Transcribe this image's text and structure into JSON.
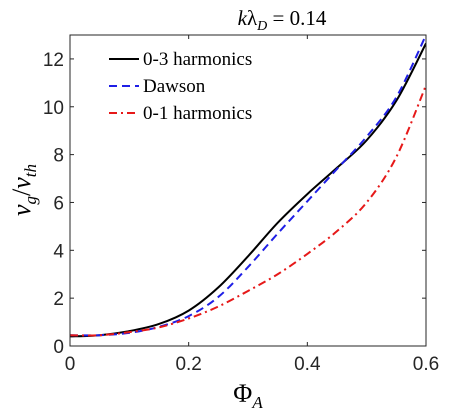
{
  "chart_data": {
    "type": "line",
    "title": "kλD = 0.14",
    "xlabel": "ΦA",
    "ylabel": "vg/vth",
    "xlim": [
      0,
      0.6
    ],
    "ylim": [
      0,
      13
    ],
    "xticks": [
      0,
      0.2,
      0.4,
      0.6
    ],
    "xtick_labels": [
      "0",
      "0.2",
      "0.4",
      "0.6"
    ],
    "yticks": [
      0,
      2,
      4,
      6,
      8,
      10,
      12
    ],
    "ytick_labels": [
      "0",
      "2",
      "4",
      "6",
      "8",
      "10",
      "12"
    ],
    "grid": false,
    "legend_position": "top-left",
    "series": [
      {
        "name": "0-3 harmonics",
        "color": "#000000",
        "dash": "solid",
        "x": [
          0,
          0.05,
          0.1,
          0.15,
          0.2,
          0.25,
          0.3,
          0.35,
          0.4,
          0.45,
          0.5,
          0.55,
          0.6
        ],
        "y": [
          0.4,
          0.45,
          0.62,
          0.92,
          1.48,
          2.45,
          3.75,
          5.15,
          6.35,
          7.45,
          8.6,
          10.25,
          12.65
        ]
      },
      {
        "name": "Dawson",
        "color": "#1f1fe6",
        "dash": "dashed",
        "x": [
          0,
          0.05,
          0.1,
          0.15,
          0.2,
          0.25,
          0.3,
          0.35,
          0.4,
          0.45,
          0.5,
          0.55,
          0.6
        ],
        "y": [
          0.45,
          0.45,
          0.55,
          0.8,
          1.25,
          2.05,
          3.3,
          4.7,
          6.05,
          7.4,
          8.75,
          10.4,
          13.0
        ]
      },
      {
        "name": "0-1 harmonics",
        "color": "#e61919",
        "dash": "dashdot",
        "x": [
          0,
          0.05,
          0.1,
          0.15,
          0.2,
          0.25,
          0.3,
          0.35,
          0.4,
          0.45,
          0.5,
          0.55,
          0.6
        ],
        "y": [
          0.45,
          0.45,
          0.58,
          0.78,
          1.15,
          1.65,
          2.3,
          3.0,
          3.85,
          4.8,
          6.0,
          7.9,
          10.9
        ]
      }
    ]
  }
}
